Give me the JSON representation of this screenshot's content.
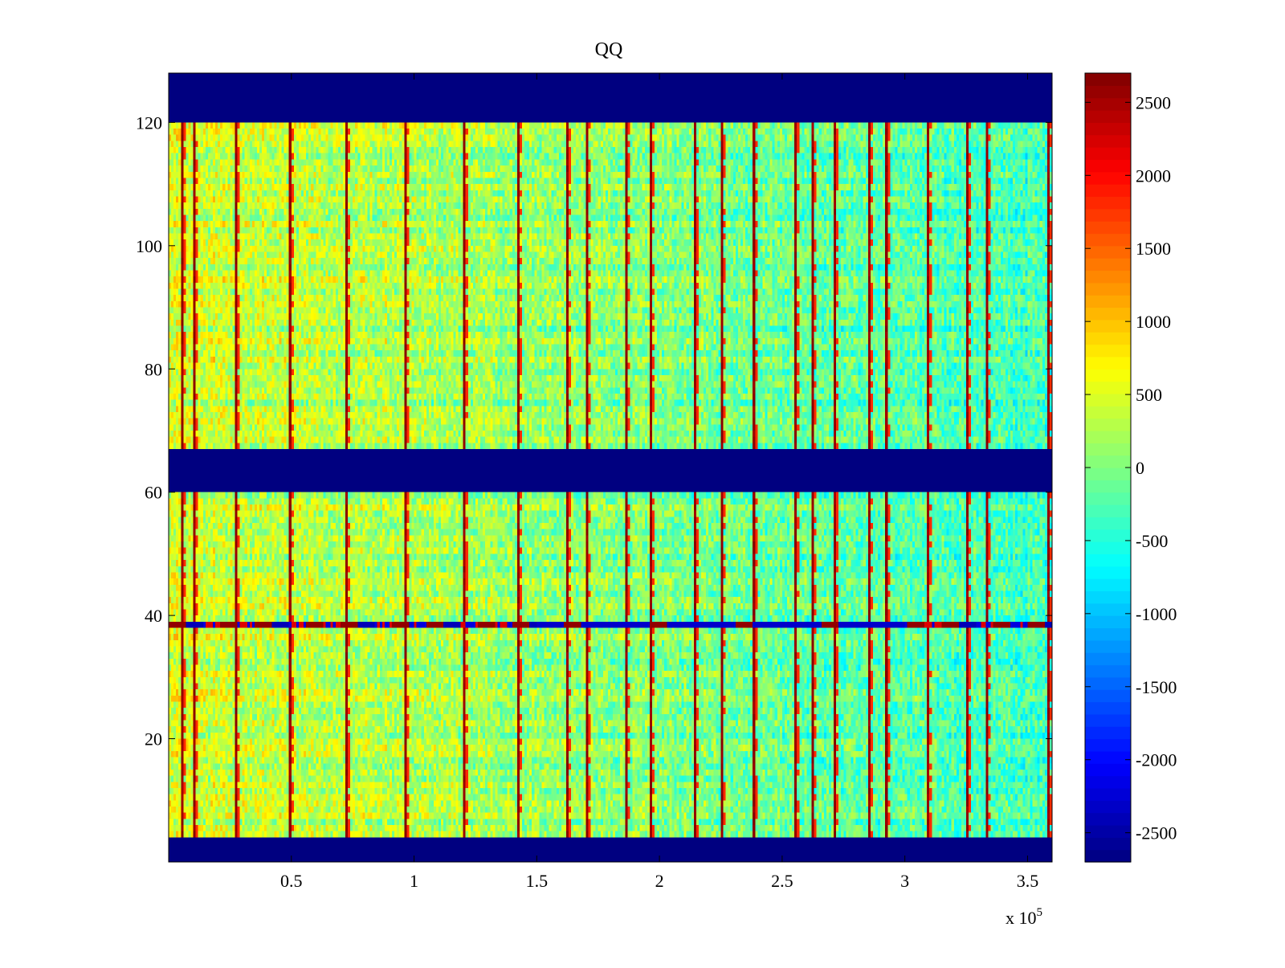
{
  "chart_data": {
    "type": "heatmap",
    "title": "QQ",
    "xlabel": "",
    "ylabel": "",
    "x_exponent_label": "x 10",
    "x_exponent_power": "5",
    "xlim": [
      0,
      3.6
    ],
    "ylim": [
      0,
      128
    ],
    "x_ticks": [
      0.5,
      1,
      1.5,
      2,
      2.5,
      3,
      3.5
    ],
    "x_tick_labels": [
      "0.5",
      "1",
      "1.5",
      "2",
      "2.5",
      "3",
      "3.5"
    ],
    "y_ticks": [
      20,
      40,
      60,
      80,
      100,
      120
    ],
    "y_tick_labels": [
      "20",
      "40",
      "60",
      "80",
      "100",
      "120"
    ],
    "colormap": "jet",
    "clim": [
      -2700,
      2700
    ],
    "colorbar_ticks": [
      2500,
      2000,
      1500,
      1000,
      500,
      0,
      -500,
      -1000,
      -1500,
      -2000,
      -2500
    ],
    "colorbar_tick_labels": [
      "2500",
      "2000",
      "1500",
      "1000",
      "500",
      "0",
      "-500",
      "-1000",
      "-1500",
      "-2000",
      "-2500"
    ],
    "masked_row_bands": [
      [
        1,
        4
      ],
      [
        61,
        67
      ],
      [
        121,
        128
      ]
    ],
    "masked_value": -2700,
    "anomalous_row": 39,
    "high_value_columns": [
      0.05,
      0.1,
      0.27,
      0.49,
      0.72,
      0.96,
      1.2,
      1.42,
      1.62,
      1.7,
      1.86,
      1.96,
      2.14,
      2.25,
      2.38,
      2.55,
      2.62,
      2.71,
      2.85,
      2.92,
      3.09,
      3.25,
      3.33,
      3.58
    ],
    "left_region_mean": 450,
    "right_region_mean": -350
  }
}
